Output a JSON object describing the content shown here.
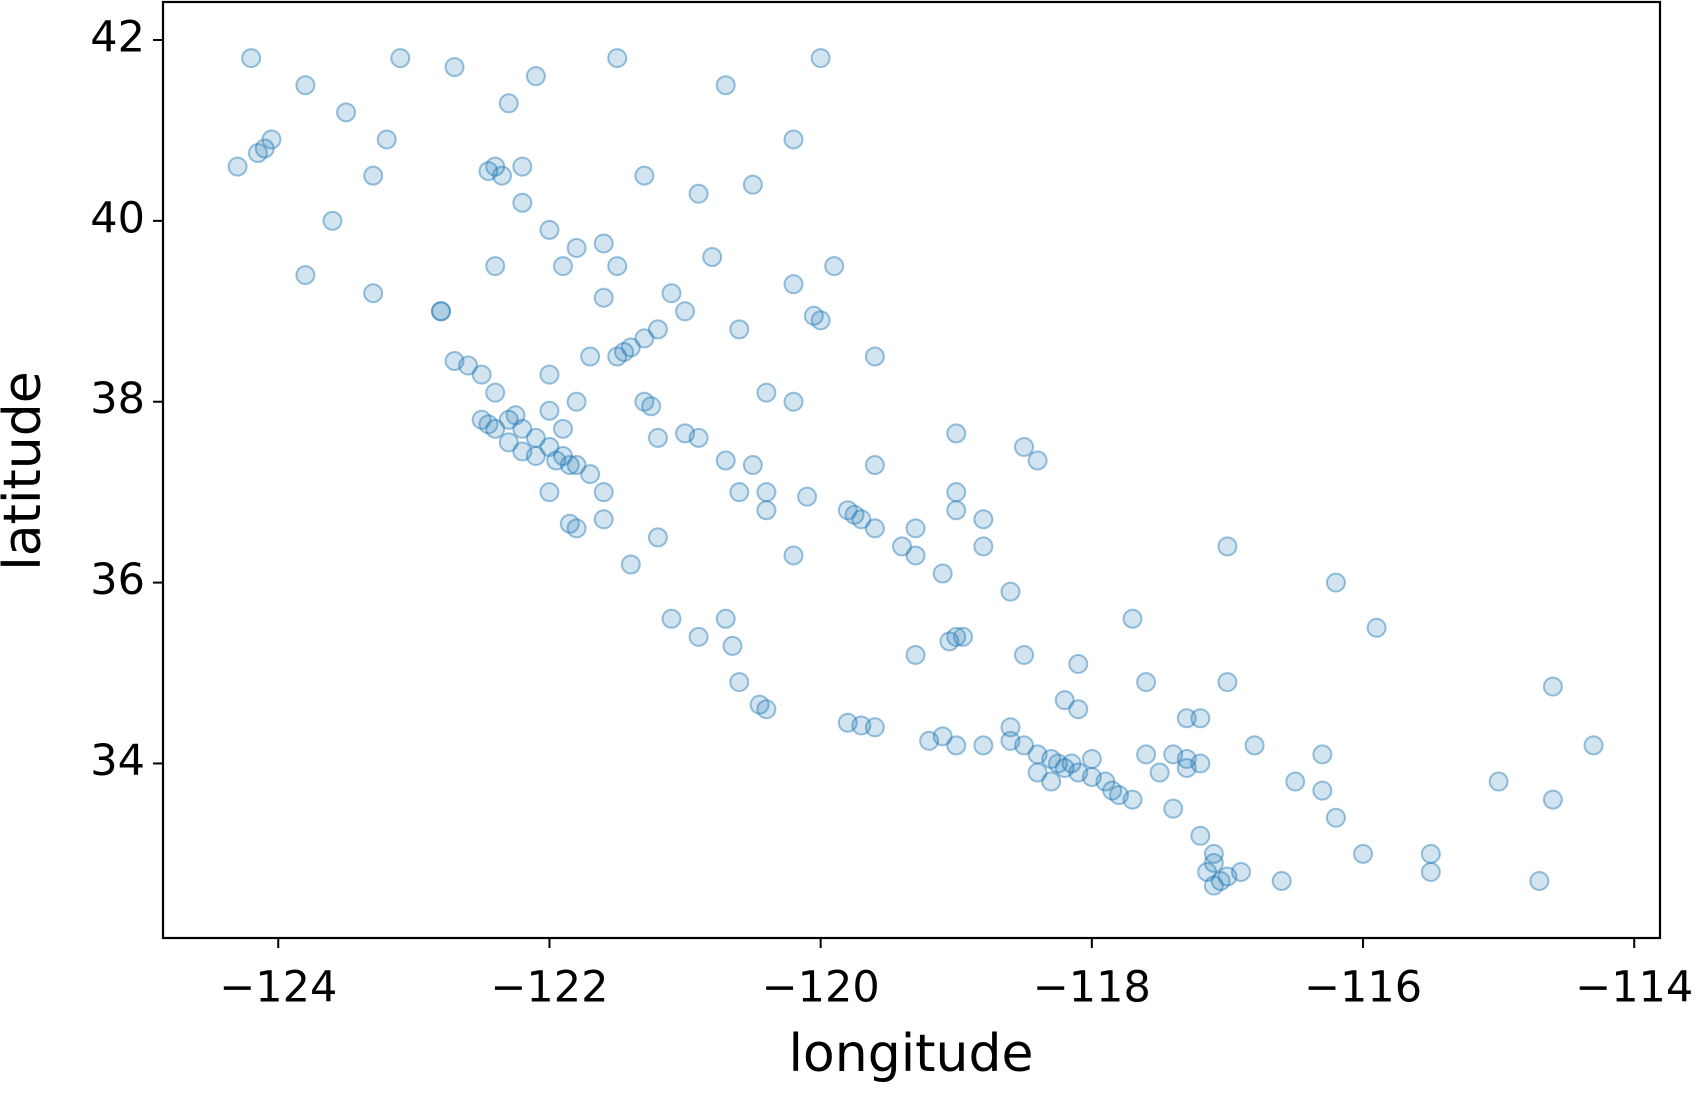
{
  "chart_data": {
    "type": "scatter",
    "x_label": "longitude",
    "y_label": "latitude",
    "color": "#1f77b4",
    "xlim": [
      -124.85,
      -113.81
    ],
    "ylim": [
      32.07,
      42.42
    ],
    "xticks": [
      {
        "value": -124,
        "label": "−124"
      },
      {
        "value": -122,
        "label": "−122"
      },
      {
        "value": -120,
        "label": "−120"
      },
      {
        "value": -118,
        "label": "−118"
      },
      {
        "value": -116,
        "label": "−116"
      },
      {
        "value": -114,
        "label": "−114"
      }
    ],
    "yticks": [
      34,
      36,
      38,
      40,
      42
    ],
    "x": [
      -124.2,
      -124.1,
      -124.15,
      -124.05,
      -124.3,
      -123.8,
      -123.5,
      -123.2,
      -122.7,
      -122.3,
      -122.4,
      -122.35,
      -122.2,
      -122.0,
      -121.6,
      -121.6,
      -121.8,
      -121.5,
      -121.1,
      -121.0,
      -121.3,
      -121.4,
      -121.45,
      -121.5,
      -121.2,
      -121.3,
      -121.25,
      -121.0,
      -120.9,
      -120.7,
      -120.5,
      -120.4,
      -120.1,
      -119.8,
      -119.75,
      -119.7,
      -119.6,
      -119.3,
      -119.1,
      -119.0,
      -119.05,
      -118.95,
      -119.3,
      -119.6,
      -119.8,
      -119.7,
      -119.2,
      -119.0,
      -118.8,
      -118.6,
      -118.5,
      -118.4,
      -118.3,
      -118.25,
      -118.2,
      -118.15,
      -118.1,
      -118.0,
      -117.9,
      -117.85,
      -117.8,
      -117.7,
      -118.0,
      -117.6,
      -117.4,
      -117.3,
      -117.2,
      -117.3,
      -117.2,
      -117.1,
      -117.1,
      -117.15,
      -117.05,
      -117.0,
      -117.1,
      -116.9,
      -117.2,
      -116.5,
      -116.3,
      -115.5,
      -115.5,
      -114.6,
      -114.6,
      -114.3,
      -114.7,
      -115.0,
      -116.2,
      -115.9,
      -117.7,
      -118.2,
      -118.1,
      -117.3,
      -117.0,
      -118.4,
      -119.0,
      -118.5,
      -119.6,
      -120.2,
      -120.4,
      -120.0,
      -120.05,
      -120.2,
      -120.6,
      -120.9,
      -120.5,
      -120.2,
      -120.0,
      -120.7,
      -121.5,
      -122.1,
      -123.3,
      -123.6,
      -123.8,
      -123.3,
      -122.8,
      -122.6,
      -122.7,
      -122.5,
      -122.4,
      -122.5,
      -122.45,
      -122.4,
      -122.3,
      -122.25,
      -122.2,
      -122.1,
      -122.0,
      -121.9,
      -121.85,
      -121.95,
      -122.1,
      -122.2,
      -122.3,
      -122.0,
      -121.9,
      -121.8,
      -121.7,
      -121.6,
      -121.8,
      -121.85,
      -121.6,
      -122.0,
      -121.7,
      -121.8,
      -122.0,
      -121.2,
      -120.6,
      -120.4,
      -120.2,
      -119.4,
      -119.3,
      -119.0,
      -118.8,
      -118.6,
      -118.5,
      -118.1,
      -117.6,
      -117.0,
      -116.8,
      -116.3,
      -116.2,
      -116.0,
      -116.6,
      -117.4,
      -117.5,
      -118.3,
      -118.4,
      -118.6,
      -119.1,
      -120.4,
      -120.6,
      -120.65,
      -120.7,
      -120.9,
      -121.1,
      -120.45,
      -121.4,
      -121.2,
      -122.8,
      -122.4,
      -121.9,
      -122.2,
      -122.45,
      -123.1,
      -121.3,
      -120.8,
      -119.9,
      -119.6,
      -119.0,
      -118.8
    ],
    "y": [
      41.8,
      40.8,
      40.75,
      40.9,
      40.6,
      41.5,
      41.2,
      40.9,
      41.7,
      41.3,
      40.6,
      40.5,
      40.2,
      39.9,
      39.75,
      39.15,
      39.7,
      39.5,
      39.2,
      39.0,
      38.7,
      38.6,
      38.55,
      38.5,
      38.8,
      38.0,
      37.95,
      37.65,
      37.6,
      37.35,
      37.3,
      37.0,
      36.95,
      36.8,
      36.75,
      36.7,
      36.6,
      36.3,
      36.1,
      35.4,
      35.35,
      35.4,
      35.2,
      34.4,
      34.45,
      34.42,
      34.25,
      34.2,
      34.2,
      34.25,
      34.2,
      34.1,
      34.05,
      34.0,
      33.95,
      34.0,
      33.9,
      33.85,
      33.8,
      33.7,
      33.65,
      33.6,
      34.05,
      34.1,
      34.1,
      34.05,
      34.0,
      33.95,
      34.5,
      33.0,
      32.9,
      32.8,
      32.7,
      32.75,
      32.65,
      32.8,
      33.2,
      33.8,
      33.7,
      32.8,
      33.0,
      33.6,
      34.85,
      34.2,
      32.7,
      33.8,
      36.0,
      35.5,
      35.6,
      34.7,
      34.6,
      34.5,
      36.4,
      37.35,
      37.65,
      37.5,
      37.3,
      38.0,
      38.1,
      38.9,
      38.95,
      39.3,
      38.8,
      40.3,
      40.4,
      40.9,
      41.8,
      41.5,
      41.8,
      41.6,
      40.5,
      40.0,
      39.4,
      39.2,
      39.0,
      38.4,
      38.45,
      38.3,
      38.1,
      37.8,
      37.75,
      37.7,
      37.8,
      37.85,
      37.7,
      37.6,
      37.5,
      37.4,
      37.3,
      37.35,
      37.4,
      37.45,
      37.55,
      37.9,
      37.7,
      37.3,
      37.2,
      37.0,
      36.6,
      36.65,
      36.7,
      37.0,
      38.5,
      38.0,
      38.3,
      37.6,
      37.0,
      36.8,
      36.3,
      36.4,
      36.6,
      36.8,
      36.4,
      35.9,
      35.2,
      35.1,
      34.9,
      34.9,
      34.2,
      34.1,
      33.4,
      33.0,
      32.7,
      33.5,
      33.9,
      33.8,
      33.9,
      34.4,
      34.3,
      34.6,
      34.9,
      35.3,
      35.6,
      35.4,
      35.6,
      34.65,
      36.2,
      36.5,
      39.0,
      39.5,
      39.5,
      40.6,
      40.55,
      41.8,
      40.5,
      39.6,
      39.5,
      38.5,
      37.0,
      36.7
    ]
  }
}
